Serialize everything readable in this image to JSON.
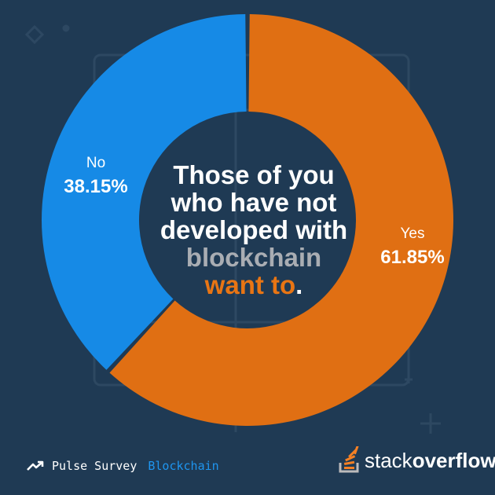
{
  "chart_data": {
    "type": "pie",
    "donut": true,
    "slices": [
      {
        "label": "Yes",
        "value": 61.85,
        "value_label": "61.85%",
        "color": "#e06f13"
      },
      {
        "label": "No",
        "value": 38.15,
        "value_label": "38.15%",
        "color": "#168ae6"
      }
    ],
    "center_text": {
      "line1": "Those of you",
      "line2": "who have not",
      "line3": "developed with",
      "line4_grey": "blockchain",
      "line5_orange": "want to",
      "line5_end": "."
    }
  },
  "footer": {
    "survey": "Pulse Survey",
    "topic": "Blockchain",
    "brand_regular": "stack",
    "brand_bold": "overflow"
  },
  "colors": {
    "background": "#1f3a54",
    "yes": "#e06f13",
    "no": "#168ae6",
    "logo_accent": "#f48024"
  },
  "icons": [
    "trending-up-icon",
    "stack-overflow-logo-icon"
  ]
}
